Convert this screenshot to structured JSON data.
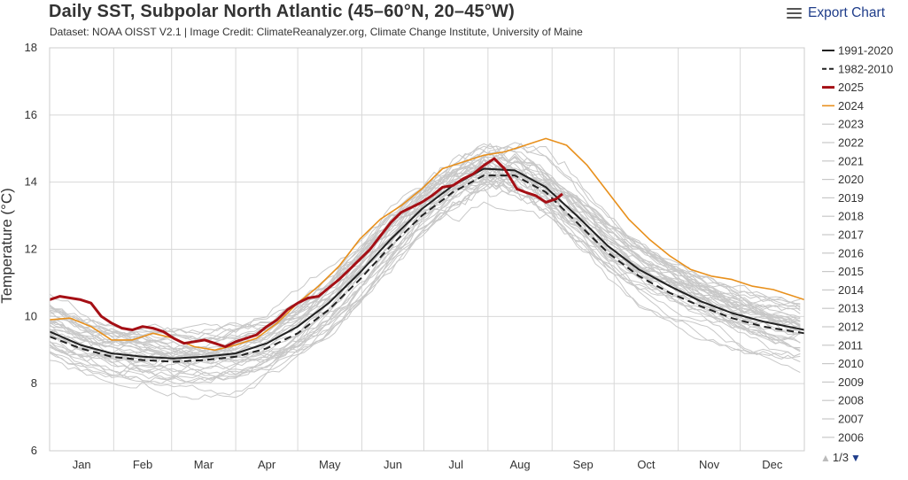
{
  "header": {
    "title": "Daily SST, Subpolar North Atlantic (45–60°N, 20–45°W)",
    "subtitle": "Dataset: NOAA OISST V2.1 | Image Credit: ClimateReanalyzer.org, Climate Change Institute, University of Maine",
    "export_label": "Export Chart"
  },
  "pager": {
    "label": "1/3",
    "up_icon": "triangle-up-icon",
    "down_icon": "triangle-down-icon"
  },
  "colors": {
    "clim1991": "#222222",
    "clim1982": "#222222",
    "y2025": "#a50f15",
    "y2024": "#e8901c",
    "past": "#c8c8c8",
    "grid": "#d8d8d8"
  },
  "chart_data": {
    "type": "line",
    "title": "Daily SST, Subpolar North Atlantic (45–60°N, 20–45°W)",
    "xlabel": "",
    "ylabel": "Temperature (°C)",
    "xlim": [
      0,
      365
    ],
    "ylim": [
      6,
      18
    ],
    "yticks": [
      "6",
      "8",
      "10",
      "12",
      "14",
      "16",
      "18"
    ],
    "months": [
      "Jan",
      "Feb",
      "Mar",
      "Apr",
      "May",
      "Jun",
      "Jul",
      "Aug",
      "Sep",
      "Oct",
      "Nov",
      "Dec"
    ],
    "legend_position": "right",
    "series": [
      {
        "name": "1991-2020",
        "style": "solid-black",
        "x": [
          0,
          15,
          30,
          45,
          60,
          75,
          90,
          105,
          120,
          135,
          150,
          165,
          180,
          195,
          210,
          225,
          240,
          255,
          270,
          285,
          300,
          315,
          330,
          345,
          365
        ],
        "values": [
          9.55,
          9.15,
          8.9,
          8.8,
          8.75,
          8.8,
          8.9,
          9.2,
          9.7,
          10.4,
          11.3,
          12.3,
          13.2,
          13.9,
          14.4,
          14.35,
          13.85,
          13.0,
          12.1,
          11.4,
          10.9,
          10.45,
          10.1,
          9.85,
          9.6
        ]
      },
      {
        "name": "1982-2010",
        "style": "dashed-black",
        "x": [
          0,
          15,
          30,
          45,
          60,
          75,
          90,
          105,
          120,
          135,
          150,
          165,
          180,
          195,
          210,
          225,
          240,
          255,
          270,
          285,
          300,
          315,
          330,
          345,
          365
        ],
        "values": [
          9.4,
          9.05,
          8.8,
          8.7,
          8.65,
          8.7,
          8.8,
          9.05,
          9.5,
          10.2,
          11.1,
          12.1,
          13.0,
          13.7,
          14.2,
          14.2,
          13.7,
          12.8,
          11.9,
          11.2,
          10.7,
          10.3,
          9.95,
          9.7,
          9.5
        ]
      },
      {
        "name": "2025",
        "style": "thick-red",
        "x": [
          0,
          5,
          10,
          15,
          20,
          25,
          30,
          35,
          40,
          45,
          50,
          55,
          60,
          65,
          70,
          75,
          80,
          85,
          90,
          95,
          100,
          105,
          110,
          115,
          120,
          125,
          130,
          135,
          140,
          145,
          150,
          155,
          160,
          165,
          170,
          175,
          180,
          185,
          190,
          195,
          200,
          205,
          210,
          215,
          220,
          223,
          226,
          230,
          235,
          240,
          245,
          248
        ],
        "values": [
          10.5,
          10.6,
          10.55,
          10.5,
          10.4,
          10.0,
          9.8,
          9.65,
          9.6,
          9.7,
          9.65,
          9.55,
          9.35,
          9.2,
          9.25,
          9.3,
          9.2,
          9.1,
          9.25,
          9.35,
          9.45,
          9.7,
          9.9,
          10.2,
          10.4,
          10.55,
          10.6,
          10.85,
          11.1,
          11.4,
          11.7,
          12.0,
          12.4,
          12.8,
          13.1,
          13.25,
          13.4,
          13.6,
          13.85,
          13.9,
          14.1,
          14.25,
          14.5,
          14.7,
          14.4,
          14.1,
          13.8,
          13.7,
          13.6,
          13.4,
          13.5,
          13.65
        ]
      },
      {
        "name": "2024",
        "style": "orange",
        "x": [
          0,
          10,
          20,
          30,
          40,
          50,
          60,
          70,
          80,
          90,
          100,
          110,
          120,
          130,
          140,
          150,
          160,
          170,
          180,
          190,
          200,
          210,
          220,
          230,
          240,
          250,
          260,
          270,
          280,
          290,
          300,
          310,
          320,
          330,
          340,
          350,
          365
        ],
        "values": [
          9.9,
          9.95,
          9.7,
          9.3,
          9.3,
          9.5,
          9.35,
          9.1,
          9.0,
          9.15,
          9.35,
          9.8,
          10.4,
          10.9,
          11.5,
          12.3,
          12.9,
          13.3,
          13.8,
          14.4,
          14.6,
          14.8,
          14.9,
          15.1,
          15.3,
          15.1,
          14.5,
          13.7,
          12.9,
          12.3,
          11.8,
          11.4,
          11.2,
          11.1,
          10.9,
          10.8,
          10.5
        ]
      },
      {
        "name": "2023",
        "style": "gray"
      },
      {
        "name": "2022",
        "style": "gray"
      },
      {
        "name": "2021",
        "style": "gray"
      },
      {
        "name": "2020",
        "style": "gray"
      },
      {
        "name": "2019",
        "style": "gray"
      },
      {
        "name": "2018",
        "style": "gray"
      },
      {
        "name": "2017",
        "style": "gray"
      },
      {
        "name": "2016",
        "style": "gray"
      },
      {
        "name": "2015",
        "style": "gray"
      },
      {
        "name": "2014",
        "style": "gray"
      },
      {
        "name": "2013",
        "style": "gray"
      },
      {
        "name": "2012",
        "style": "gray"
      },
      {
        "name": "2011",
        "style": "gray"
      },
      {
        "name": "2010",
        "style": "gray"
      },
      {
        "name": "2009",
        "style": "gray"
      },
      {
        "name": "2008",
        "style": "gray"
      },
      {
        "name": "2007",
        "style": "gray"
      },
      {
        "name": "2006",
        "style": "gray"
      }
    ]
  }
}
